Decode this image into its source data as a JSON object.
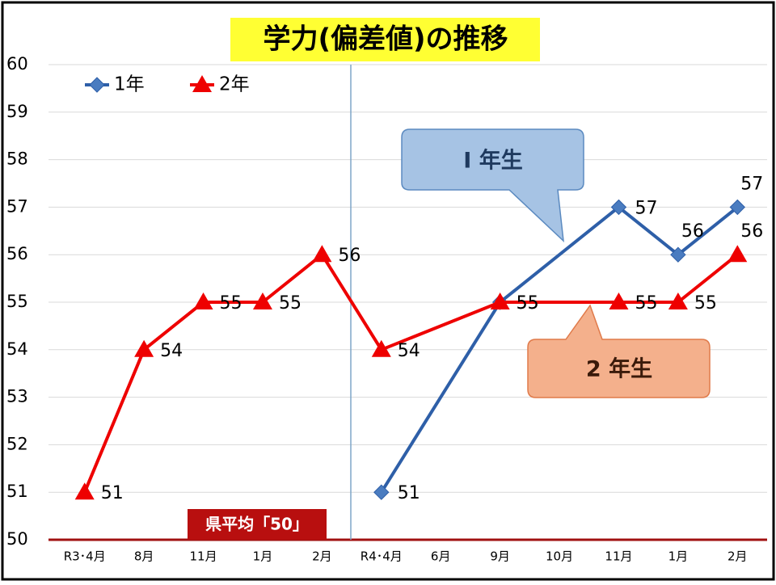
{
  "chart_data": {
    "type": "line",
    "title": "学力(偏差値)の推移",
    "categories": [
      "R3･4月",
      "8月",
      "11月",
      "1月",
      "2月",
      "R4･4月",
      "6月",
      "9月",
      "10月",
      "11月",
      "1月",
      "2月"
    ],
    "series": [
      {
        "name": "1年",
        "color": "#2e5fa8",
        "marker_color": "#4a7cc0",
        "marker": "diamond",
        "values": [
          null,
          null,
          null,
          null,
          null,
          51,
          null,
          55,
          null,
          57,
          56,
          57
        ]
      },
      {
        "name": "2年",
        "color": "#ee0000",
        "marker_color": "#ee0000",
        "marker": "triangle",
        "values": [
          51,
          54,
          55,
          55,
          56,
          54,
          null,
          55,
          null,
          55,
          55,
          56
        ]
      }
    ],
    "connect_gaps": true,
    "ylim": [
      50,
      60
    ],
    "yticks": [
      50,
      51,
      52,
      53,
      54,
      55,
      56,
      57,
      58,
      59,
      60
    ],
    "grid": true,
    "legend": "top-left",
    "annotations": {
      "callout_1": "I 年生",
      "callout_2": "2 年生",
      "reference": "県平均「50」"
    }
  }
}
